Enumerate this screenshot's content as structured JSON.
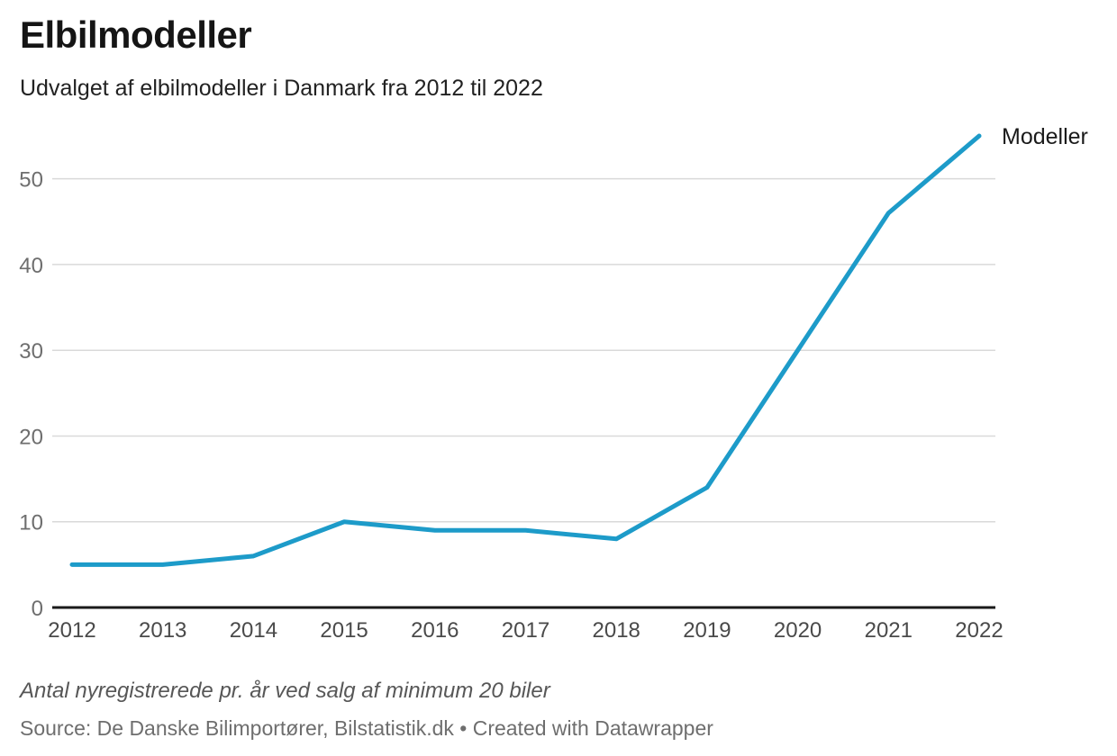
{
  "header": {
    "title": "Elbilmodeller",
    "subtitle": "Udvalget af elbilmodeller i Danmark fra 2012 til 2022"
  },
  "chart_data": {
    "type": "line",
    "title": "Elbilmodeller",
    "subtitle": "Udvalget af elbilmodeller i Danmark fra 2012 til 2022",
    "x": [
      2012,
      2013,
      2014,
      2015,
      2016,
      2017,
      2018,
      2019,
      2020,
      2021,
      2022
    ],
    "series": [
      {
        "name": "Modeller",
        "values": [
          5,
          5,
          6,
          10,
          9,
          9,
          8,
          14,
          30,
          46,
          55
        ]
      }
    ],
    "yticks": [
      0,
      10,
      20,
      30,
      40,
      50
    ],
    "ylim": [
      0,
      57
    ],
    "xlabel": "",
    "ylabel": "",
    "grid": true,
    "legend_position": "end-of-line-label",
    "colors": {
      "line": "#1d9bc9",
      "gridline": "#d9d9d9",
      "axis_line": "#1a1a1a",
      "x_tick_label": "#4a4a4a",
      "y_tick_label": "#6e6e6e",
      "series_label": "#1a1a1a"
    }
  },
  "footer": {
    "note": "Antal nyregistrerede pr. år ved salg af minimum 20 biler",
    "source": "Source: De Danske Bilimportører, Bilstatistik.dk • Created with Datawrapper"
  }
}
